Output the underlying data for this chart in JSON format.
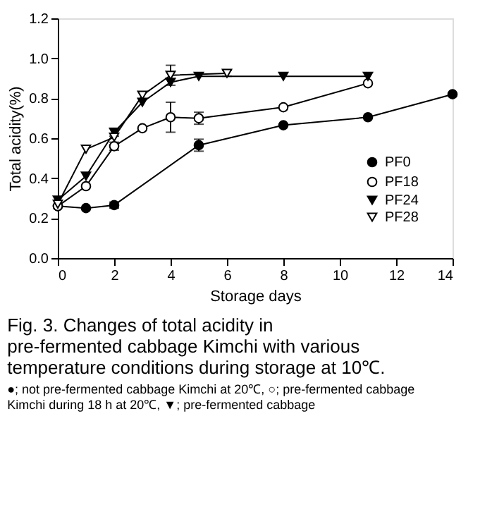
{
  "chart_data": {
    "type": "line",
    "xlabel": "Storage days",
    "ylabel": "Total acidity(%)",
    "xlim": [
      0,
      14
    ],
    "xticks": [
      0,
      2,
      4,
      6,
      8,
      10,
      12,
      14
    ],
    "ylim": [
      0,
      1.2
    ],
    "yticks": [
      {
        "value": 0,
        "label": "0.0"
      },
      {
        "value": 0.2,
        "label": "0.2"
      },
      {
        "value": 0.4,
        "label": "0.4"
      },
      {
        "value": 0.6,
        "label": "0.6"
      },
      {
        "value": 0.8,
        "label": "0.8"
      },
      {
        "value": 1,
        "label": "1.0"
      },
      {
        "value": 1.2,
        "label": "1.2"
      }
    ],
    "grid": false,
    "legend": "bottom right",
    "line_style": "solid",
    "series": [
      {
        "name": "PF0",
        "color": "#000000",
        "marker": "circle",
        "x": [
          0,
          1,
          2,
          5,
          8,
          11,
          14
        ],
        "values": [
          0.26,
          0.25,
          0.265,
          0.565,
          0.665,
          0.705,
          0.82
        ],
        "errors": [
          null,
          null,
          0.015,
          0.03,
          null,
          null,
          null
        ]
      },
      {
        "name": "PF18",
        "color": "#ffffff",
        "marker": "circle",
        "x": [
          0,
          1,
          2,
          3,
          4,
          5,
          8,
          11
        ],
        "values": [
          0.26,
          0.36,
          0.56,
          0.65,
          0.705,
          0.7,
          0.755,
          0.875
        ],
        "errors": [
          null,
          null,
          0.02,
          null,
          0.075,
          0.03,
          null,
          null
        ]
      },
      {
        "name": "PF24",
        "color": "#000000",
        "marker": "triangle",
        "x": [
          0,
          1,
          2,
          3,
          4,
          5,
          8,
          11
        ],
        "values": [
          0.29,
          0.41,
          0.63,
          0.78,
          0.88,
          0.91,
          0.91,
          0.91
        ],
        "errors": [
          null,
          null,
          0.02,
          null,
          null,
          null,
          null,
          null
        ]
      },
      {
        "name": "PF28",
        "color": "#ffffff",
        "marker": "triangle",
        "x": [
          0,
          1,
          2,
          3,
          4,
          6
        ],
        "values": [
          0.27,
          0.545,
          0.605,
          0.815,
          0.915,
          0.925
        ],
        "errors": [
          null,
          null,
          null,
          null,
          0.05,
          0.015
        ]
      }
    ],
    "annotations": [
      "Fig. 3. Changes of total acidity in pre-fermented cabbage Kimchi with various temperature conditions during storage at 10℃.",
      "●; not pre-fermented cabbage Kimchi at 20℃, ○; pre-fermented cabbage Kimchi during 18 h at 20℃, ▼; pre-fermented cabbage"
    ]
  }
}
